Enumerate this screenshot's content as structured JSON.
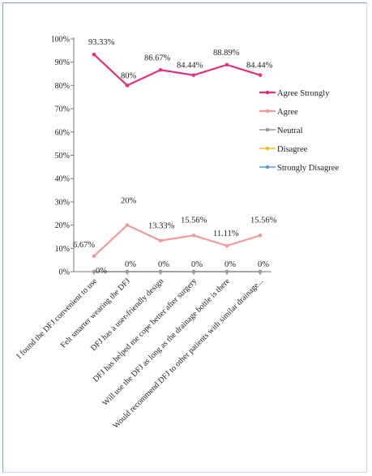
{
  "chart_data": {
    "type": "line",
    "categories": [
      "I found the DFJ convenient to use",
      "Felt smarter wearing the DFJ",
      "DFJ has a user-friendly design",
      "DFJ has helped me cope better after surgery",
      "Will use the DFJ as long as the drainage bottle is there",
      "Would recommend DFJ to other patients with similar drainage..."
    ],
    "ylim": [
      0,
      100
    ],
    "y_ticks": [
      "0%",
      "10%",
      "20%",
      "30%",
      "40%",
      "50%",
      "60%",
      "70%",
      "80%",
      "90%",
      "100%"
    ],
    "grid": false,
    "legend_position": "right",
    "series": [
      {
        "name": "Agree Strongly",
        "color": "#e0307a",
        "values": [
          93.33,
          80,
          86.67,
          84.44,
          88.89,
          84.44
        ],
        "labels": [
          "93.33%",
          "80%",
          "86.67%",
          "84.44%",
          "88.89%",
          "84.44%"
        ]
      },
      {
        "name": "Agree",
        "color": "#f29a9a",
        "values": [
          6.67,
          20,
          13.33,
          15.56,
          11.11,
          15.56
        ],
        "labels": [
          "6.67%",
          "20%",
          "13.33%",
          "15.56%",
          "11.11%",
          "15.56%"
        ]
      },
      {
        "name": "Neutral",
        "color": "#9a9aa0",
        "values": [
          0,
          0,
          0,
          0,
          0,
          0
        ],
        "labels": [
          "0%",
          "0%",
          "0%",
          "0%",
          "0%",
          "0%"
        ]
      },
      {
        "name": "Disagree",
        "color": "#f5b82e",
        "values": [
          0,
          0,
          0,
          0,
          0,
          0
        ],
        "labels": []
      },
      {
        "name": "Strongly Disagree",
        "color": "#5b9bd5",
        "values": [
          0,
          0,
          0,
          0,
          0,
          0
        ],
        "labels": []
      }
    ]
  }
}
